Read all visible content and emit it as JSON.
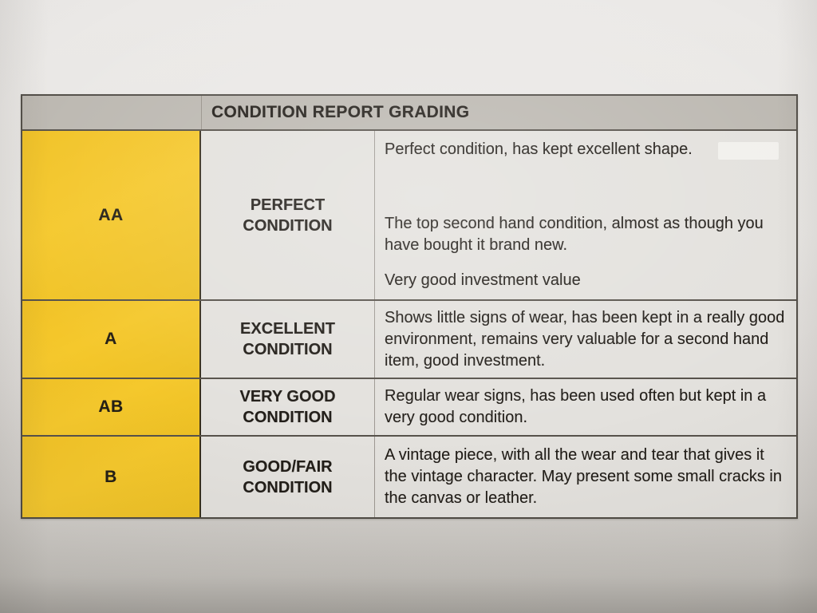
{
  "header": {
    "title": "CONDITION REPORT GRADING"
  },
  "rows": [
    {
      "grade": "AA",
      "name": "PERFECT CONDITION",
      "desc": [
        "Perfect condition, has kept excellent shape.",
        "The top second hand condition, almost as though you have bought it brand new.",
        "Very good investment value"
      ]
    },
    {
      "grade": "A",
      "name": "EXCELLENT CONDITION",
      "desc": [
        "Shows little signs of wear, has been kept in a really good environment, remains very valuable for a second hand item, good investment."
      ]
    },
    {
      "grade": "AB",
      "name": "VERY GOOD CONDITION",
      "desc": [
        "Regular wear signs, has been used often but kept in a very good condition."
      ]
    },
    {
      "grade": "B",
      "name": "GOOD/FAIR CONDITION",
      "desc": [
        "A vintage piece, with all the wear and tear that gives it the vintage character. May present some small cracks in the canvas or leather."
      ]
    }
  ],
  "colors": {
    "grade_column": "#f5c82c",
    "cell_background": "#e3e1dd",
    "header_background": "#bcb8b1",
    "text": "#211d18"
  }
}
